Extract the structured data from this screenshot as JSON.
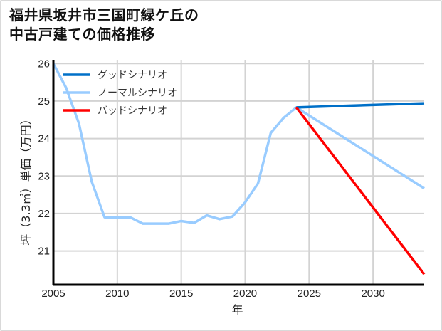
{
  "title_line1": "福井県坂井市三国町緑ケ丘の",
  "title_line2": "中古戸建ての価格推移",
  "chart_data": {
    "type": "line",
    "title": "福井県坂井市三国町緑ケ丘の中古戸建ての価格推移",
    "xlabel": "年",
    "ylabel": "坪（3.3㎡）単価（万円）",
    "xlim": [
      2005,
      2034
    ],
    "ylim": [
      20.1,
      26.1
    ],
    "x_ticks": [
      2005,
      2010,
      2015,
      2020,
      2025,
      2030
    ],
    "y_ticks": [
      21,
      22,
      23,
      24,
      25,
      26
    ],
    "grid": true,
    "legend_position": "upper left",
    "series": [
      {
        "name": "グッドシナリオ",
        "color": "#0070c8",
        "x": [
          2024,
          2034
        ],
        "values": [
          24.83,
          24.94
        ]
      },
      {
        "name": "ノーマルシナリオ",
        "color": "#99ccff",
        "x": [
          2005,
          2006,
          2007,
          2008,
          2009,
          2010,
          2011,
          2012,
          2013,
          2014,
          2015,
          2016,
          2017,
          2018,
          2019,
          2020,
          2021,
          2022,
          2023,
          2024,
          2034
        ],
        "values": [
          26.0,
          25.35,
          24.4,
          22.85,
          21.9,
          21.9,
          21.9,
          21.73,
          21.73,
          21.73,
          21.8,
          21.75,
          21.95,
          21.85,
          21.92,
          22.3,
          22.8,
          24.15,
          24.55,
          24.83,
          22.67
        ]
      },
      {
        "name": "バッドシナリオ",
        "color": "#ff0000",
        "x": [
          2024,
          2034
        ],
        "values": [
          24.83,
          20.38
        ]
      }
    ]
  }
}
